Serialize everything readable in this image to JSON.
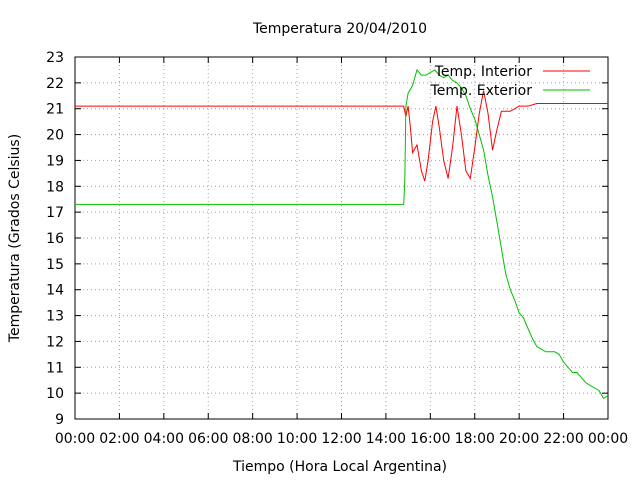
{
  "chart_data": {
    "type": "line",
    "title": "Temperatura 20/04/2010",
    "xlabel": "Tiempo (Hora Local Argentina)",
    "ylabel": "Temperatura (Grados Celsius)",
    "xlim": [
      0,
      24
    ],
    "ylim": [
      9,
      23
    ],
    "grid": true,
    "legend": "top-right",
    "x_tick_labels": [
      "00:00",
      "02:00",
      "04:00",
      "06:00",
      "08:00",
      "10:00",
      "12:00",
      "14:00",
      "16:00",
      "18:00",
      "20:00",
      "22:00",
      "00:00"
    ],
    "y_tick_labels": [
      "9",
      "10",
      "11",
      "12",
      "13",
      "14",
      "15",
      "16",
      "17",
      "18",
      "19",
      "20",
      "21",
      "22",
      "23"
    ],
    "series": [
      {
        "name": "Temp. Interior",
        "color": "#ff0000",
        "x": [
          0,
          14.8,
          14.9,
          15.0,
          15.1,
          15.2,
          15.4,
          15.6,
          15.75,
          15.9,
          16.1,
          16.25,
          16.4,
          16.6,
          16.8,
          17.0,
          17.2,
          17.4,
          17.6,
          17.8,
          18.0,
          18.2,
          18.4,
          18.6,
          18.8,
          19.0,
          19.2,
          19.4,
          19.6,
          20.0,
          20.4,
          20.8,
          21.2,
          24.0
        ],
        "y": [
          21.1,
          21.1,
          20.7,
          21.1,
          20.3,
          19.3,
          19.6,
          18.6,
          18.2,
          19.0,
          20.5,
          21.1,
          20.3,
          19.0,
          18.3,
          19.5,
          21.1,
          20.0,
          18.6,
          18.3,
          19.5,
          20.8,
          21.7,
          20.8,
          19.4,
          20.2,
          20.9,
          20.9,
          20.9,
          21.1,
          21.1,
          21.2,
          21.2,
          21.2
        ]
      },
      {
        "name": "Temp. Exterior",
        "color": "#00c000",
        "x": [
          0,
          14.8,
          14.85,
          14.9,
          15.0,
          15.2,
          15.4,
          15.6,
          15.8,
          16.0,
          16.2,
          16.4,
          16.6,
          16.8,
          17.0,
          17.2,
          17.4,
          17.6,
          17.8,
          18.0,
          18.2,
          18.4,
          18.6,
          18.8,
          19.0,
          19.2,
          19.4,
          19.6,
          19.8,
          20.0,
          20.2,
          20.4,
          20.6,
          20.8,
          21.0,
          21.2,
          21.4,
          21.6,
          21.8,
          22.0,
          22.2,
          22.4,
          22.6,
          22.8,
          23.0,
          23.2,
          23.4,
          23.6,
          23.8,
          24.0
        ],
        "y": [
          17.3,
          17.3,
          18.2,
          21.1,
          21.6,
          21.9,
          22.5,
          22.3,
          22.3,
          22.4,
          22.5,
          22.3,
          22.2,
          22.3,
          22.1,
          22.0,
          21.8,
          21.5,
          21.0,
          20.6,
          20.0,
          19.4,
          18.4,
          17.6,
          16.6,
          15.6,
          14.6,
          14.0,
          13.6,
          13.1,
          12.9,
          12.5,
          12.1,
          11.8,
          11.7,
          11.6,
          11.6,
          11.6,
          11.5,
          11.2,
          11.0,
          10.8,
          10.8,
          10.6,
          10.4,
          10.3,
          10.2,
          10.1,
          9.8,
          9.9
        ]
      }
    ]
  }
}
